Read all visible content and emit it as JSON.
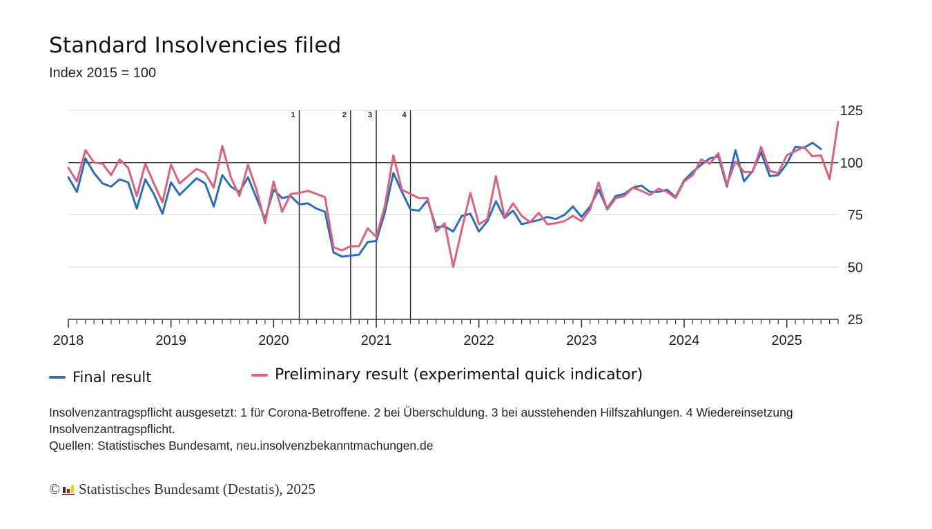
{
  "title": "Standard Insolvencies filed",
  "subtitle": "Index 2015 = 100",
  "colors": {
    "final": "#2a6ebb",
    "preliminary": "#e0607a",
    "grid": "#d9d9d9",
    "axis": "#333333"
  },
  "legend": {
    "final": "Final result",
    "preliminary": "Preliminary result (experimental quick indicator)"
  },
  "note": {
    "line1": "Insolvenzantragspflicht ausgesetzt: 1 für Corona-Betroffene. 2 bei Überschuldung. 3 bei ausstehenden Hilfszahlungen. 4 Wiedereinsetzung Insolvenzantragspflicht.",
    "line2": "Quellen: Statistisches Bundesamt, neu.insolvenzbekanntmachungen.de"
  },
  "footer": {
    "copyright": "©",
    "text": "Statistisches Bundesamt (Destatis), 2025",
    "logo_colors": [
      "#e3001b",
      "#ffcc00",
      "#333333"
    ]
  },
  "chart_data": {
    "type": "line",
    "x_start": "2018-01",
    "x_unit": "month",
    "x_ticks": [
      "2018",
      "2019",
      "2020",
      "2021",
      "2022",
      "2023",
      "2024",
      "2025"
    ],
    "y_ticks": [
      "25",
      "50",
      "75",
      "100",
      "125"
    ],
    "ylim": [
      25,
      125
    ],
    "reference_line": 100,
    "grid": true,
    "legend_position": "bottom",
    "events": [
      {
        "label": "1",
        "x": "2020-04"
      },
      {
        "label": "2",
        "x": "2020-10"
      },
      {
        "label": "3",
        "x": "2021-01"
      },
      {
        "label": "4",
        "x": "2021-05"
      }
    ],
    "series": [
      {
        "name": "Final result",
        "key": "final",
        "values": [
          93,
          86,
          102,
          95,
          90,
          88.5,
          92,
          90.5,
          78,
          92,
          85,
          75.5,
          90.5,
          84.5,
          88.5,
          92.5,
          90,
          79,
          94,
          88.5,
          86,
          93,
          83,
          73,
          87,
          83,
          84,
          80,
          80.5,
          78,
          76.5,
          57,
          55,
          55.5,
          56,
          62,
          62.5,
          76,
          95,
          86,
          77.5,
          77,
          82,
          69,
          69.5,
          67,
          74.5,
          75.5,
          67,
          72,
          81.5,
          73.5,
          77,
          70.5,
          71.5,
          72.5,
          74,
          73,
          75,
          79,
          74,
          79,
          87,
          78,
          84,
          85,
          88,
          89,
          86,
          86,
          87,
          83.5,
          91.5,
          95.5,
          99,
          102,
          103,
          88.5,
          106,
          91,
          96,
          105,
          93.5,
          94,
          99.5,
          107.5,
          107,
          109.5,
          106.5
        ]
      },
      {
        "name": "Preliminary result (experimental quick indicator)",
        "key": "preliminary",
        "values": [
          97.5,
          91,
          106,
          100,
          99.5,
          94,
          101.5,
          97.5,
          84,
          99.5,
          90,
          81,
          99,
          90,
          93.5,
          97,
          95,
          88,
          108,
          93,
          84,
          99,
          87,
          71,
          91,
          76.5,
          85,
          85.5,
          86.5,
          85,
          83.5,
          59.5,
          58,
          60,
          60,
          68.5,
          64.5,
          79,
          103.5,
          87,
          85,
          83,
          83,
          67,
          71,
          50,
          68,
          85.5,
          70.5,
          73,
          93.5,
          74,
          80.5,
          74.5,
          71.5,
          76,
          70.5,
          71,
          72,
          74.5,
          72,
          77.5,
          90.5,
          77.5,
          83,
          84,
          88,
          86.5,
          84.5,
          87.5,
          86,
          83,
          91,
          94,
          101.5,
          99.5,
          104.5,
          89.5,
          100.5,
          95.5,
          95.5,
          107.5,
          96,
          95,
          103.5,
          105.5,
          107.5,
          103,
          103.5,
          92,
          119.5
        ]
      }
    ]
  }
}
